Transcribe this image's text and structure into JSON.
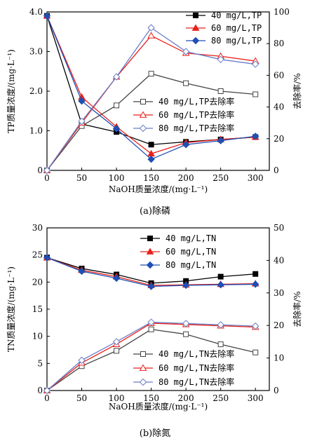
{
  "chart_data": [
    {
      "type": "line",
      "caption": "(a)除磷",
      "xlabel": "NaOH质量浓度/(mg·L⁻¹)",
      "ylabel": "TP质量浓度/(mg·L⁻¹)",
      "y2label": "去除率/%",
      "x": [
        0,
        50,
        100,
        150,
        200,
        250,
        300
      ],
      "xticks": [
        "0",
        "50",
        "100",
        "150",
        "200",
        "250",
        "300"
      ],
      "xlim": [
        0,
        320
      ],
      "ylim": [
        0,
        4.0
      ],
      "yticks": [
        "0",
        "1.0",
        "2.0",
        "3.0",
        "4.0"
      ],
      "y2lim": [
        0,
        100
      ],
      "y2ticks": [
        "0",
        "20",
        "40",
        "60",
        "80",
        "100"
      ],
      "series": [
        {
          "name": "40 mg/L,TP",
          "axis": "left",
          "marker": "square",
          "filled": true,
          "color": "#000000",
          "values": [
            3.9,
            1.17,
            0.97,
            0.65,
            0.72,
            0.78,
            0.84
          ]
        },
        {
          "name": "60 mg/L,TP",
          "axis": "left",
          "marker": "triangle",
          "filled": true,
          "color": "#e8201a",
          "values": [
            3.9,
            1.85,
            1.1,
            0.42,
            0.7,
            0.78,
            0.84
          ]
        },
        {
          "name": "80 mg/L,TP",
          "axis": "left",
          "marker": "diamond",
          "filled": true,
          "color": "#1f4fb4",
          "values": [
            3.9,
            1.75,
            1.05,
            0.28,
            0.65,
            0.75,
            0.86
          ]
        },
        {
          "name": "40 mg/L,TP去除率",
          "axis": "right",
          "marker": "square",
          "filled": false,
          "color": "#444444",
          "values": [
            0,
            28,
            41,
            61,
            55,
            50,
            48
          ]
        },
        {
          "name": "60 mg/L,TP去除率",
          "axis": "right",
          "marker": "triangle",
          "filled": false,
          "color": "#e8201a",
          "values": [
            0,
            30,
            59,
            85,
            74,
            72,
            69
          ]
        },
        {
          "name": "80 mg/L,TP去除率",
          "axis": "right",
          "marker": "diamond",
          "filled": false,
          "color": "#6a7ec8",
          "values": [
            0,
            31,
            59,
            90,
            75,
            70,
            67
          ]
        }
      ]
    },
    {
      "type": "line",
      "caption": "(b)除氮",
      "xlabel": "NaOH质量浓度/(mg·L⁻¹)",
      "ylabel": "TN质量浓度/(mg·L⁻¹)",
      "y2label": "去除率/%",
      "x": [
        0,
        50,
        100,
        150,
        200,
        250,
        300
      ],
      "xticks": [
        "0",
        "50",
        "100",
        "150",
        "200",
        "250",
        "300"
      ],
      "xlim": [
        0,
        320
      ],
      "ylim": [
        0,
        30
      ],
      "yticks": [
        "0",
        "5",
        "10",
        "15",
        "20",
        "25",
        "30"
      ],
      "y2lim": [
        0,
        50
      ],
      "y2ticks": [
        "0",
        "10",
        "20",
        "30",
        "40",
        "50"
      ],
      "series": [
        {
          "name": "40 mg/L,TN",
          "axis": "left",
          "marker": "square",
          "filled": true,
          "color": "#000000",
          "values": [
            24.5,
            22.5,
            21.4,
            19.8,
            20.2,
            21.0,
            21.5
          ]
        },
        {
          "name": "60 mg/L,TN",
          "axis": "left",
          "marker": "triangle",
          "filled": true,
          "color": "#e8201a",
          "values": [
            24.5,
            22.2,
            21.0,
            19.4,
            19.5,
            19.6,
            19.7
          ]
        },
        {
          "name": "80 mg/L,TN",
          "axis": "left",
          "marker": "diamond",
          "filled": true,
          "color": "#1f4fb4",
          "values": [
            24.5,
            22.0,
            20.7,
            19.2,
            19.4,
            19.5,
            19.6
          ]
        },
        {
          "name": "40 mg/L,TN去除率",
          "axis": "right",
          "marker": "square",
          "filled": false,
          "color": "#444444",
          "values": [
            0,
            7.5,
            12.2,
            18.8,
            17.3,
            14.2,
            11.7
          ]
        },
        {
          "name": "60 mg/L,TN去除率",
          "axis": "right",
          "marker": "triangle",
          "filled": false,
          "color": "#e8201a",
          "values": [
            0,
            8.5,
            14.2,
            20.7,
            20.3,
            19.9,
            19.5
          ]
        },
        {
          "name": "80 mg/L,TN去除率",
          "axis": "right",
          "marker": "diamond",
          "filled": false,
          "color": "#6a7ec8",
          "values": [
            0,
            9.3,
            15.0,
            21.0,
            20.6,
            20.2,
            19.8
          ]
        }
      ]
    }
  ]
}
